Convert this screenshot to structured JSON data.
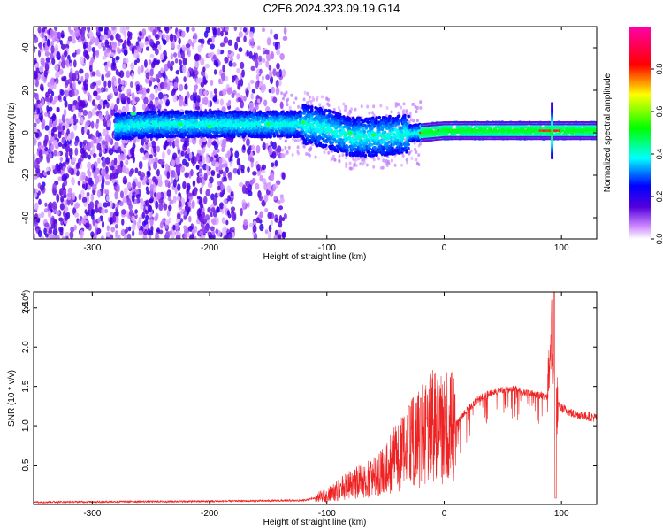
{
  "title": "C2E6.2024.323.09.19.G14",
  "chart_data": [
    {
      "type": "heatmap",
      "xlabel": "Height of straight line (km)",
      "ylabel": "Frequency (Hz)",
      "xlim": [
        -350,
        130
      ],
      "ylim": [
        -50,
        50
      ],
      "xticks": [
        -300,
        -200,
        -100,
        0,
        100
      ],
      "yticks": [
        -40,
        -20,
        0,
        20,
        40
      ],
      "colorbar": {
        "label": "Normalized spectral amplitude",
        "range": [
          0,
          1
        ],
        "ticks": [
          0.0,
          0.2,
          0.4,
          0.6,
          0.8
        ],
        "colors": [
          "#ffffff",
          "#cc88ff",
          "#5500dd",
          "#0000ff",
          "#00ffff",
          "#00ff00",
          "#ffff00",
          "#ff0000",
          "#ff00aa"
        ]
      },
      "ridge": [
        [
          -350,
          0
        ],
        [
          -300,
          2
        ],
        [
          -250,
          4
        ],
        [
          -200,
          4
        ],
        [
          -150,
          4
        ],
        [
          -120,
          4
        ],
        [
          -100,
          2
        ],
        [
          -80,
          -2
        ],
        [
          -60,
          -2
        ],
        [
          -40,
          -1
        ],
        [
          -20,
          0
        ],
        [
          0,
          1
        ],
        [
          50,
          1
        ],
        [
          100,
          1
        ],
        [
          130,
          1
        ]
      ],
      "hotspots": [
        [
          -265,
          9
        ],
        [
          -225,
          4
        ],
        [
          -200,
          3
        ],
        [
          -150,
          4
        ],
        [
          -120,
          5
        ],
        [
          -80,
          0
        ],
        [
          -60,
          -1
        ],
        [
          -20,
          0
        ],
        [
          -5,
          1
        ],
        [
          85,
          1
        ],
        [
          95,
          1
        ]
      ]
    },
    {
      "type": "line",
      "xlabel": "Height of straight line (km)",
      "ylabel": "SNR (10 * v/v)",
      "scale_label": "(x10",
      "scale_exp": "4",
      "xlim": [
        -350,
        130
      ],
      "ylim": [
        0,
        27000
      ],
      "xticks": [
        -300,
        -200,
        -100,
        0,
        100
      ],
      "yticks": [
        5000,
        10000,
        15000,
        20000,
        25000
      ],
      "yticklabels": [
        "0.5",
        "1.0",
        "1.5",
        "2.0",
        "2.5"
      ],
      "color": "#ee2222",
      "envelope": [
        [
          -350,
          300
        ],
        [
          -200,
          400
        ],
        [
          -120,
          500
        ],
        [
          -100,
          1200
        ],
        [
          -80,
          2500
        ],
        [
          -60,
          3500
        ],
        [
          -40,
          6000
        ],
        [
          -25,
          8000
        ],
        [
          -10,
          10000
        ],
        [
          0,
          9500
        ],
        [
          10,
          10500
        ],
        [
          20,
          12500
        ],
        [
          30,
          13800
        ],
        [
          40,
          14500
        ],
        [
          50,
          15000
        ],
        [
          60,
          15000
        ],
        [
          70,
          14500
        ],
        [
          80,
          14300
        ],
        [
          88,
          14000
        ],
        [
          92,
          23000
        ],
        [
          94,
          13000
        ],
        [
          97,
          12500
        ],
        [
          110,
          11500
        ],
        [
          130,
          11000
        ]
      ],
      "spikes": [
        [
          -30,
          12500
        ],
        [
          -20,
          13500
        ],
        [
          -15,
          11000
        ],
        [
          92,
          26000
        ],
        [
          94,
          27000
        ]
      ]
    }
  ]
}
